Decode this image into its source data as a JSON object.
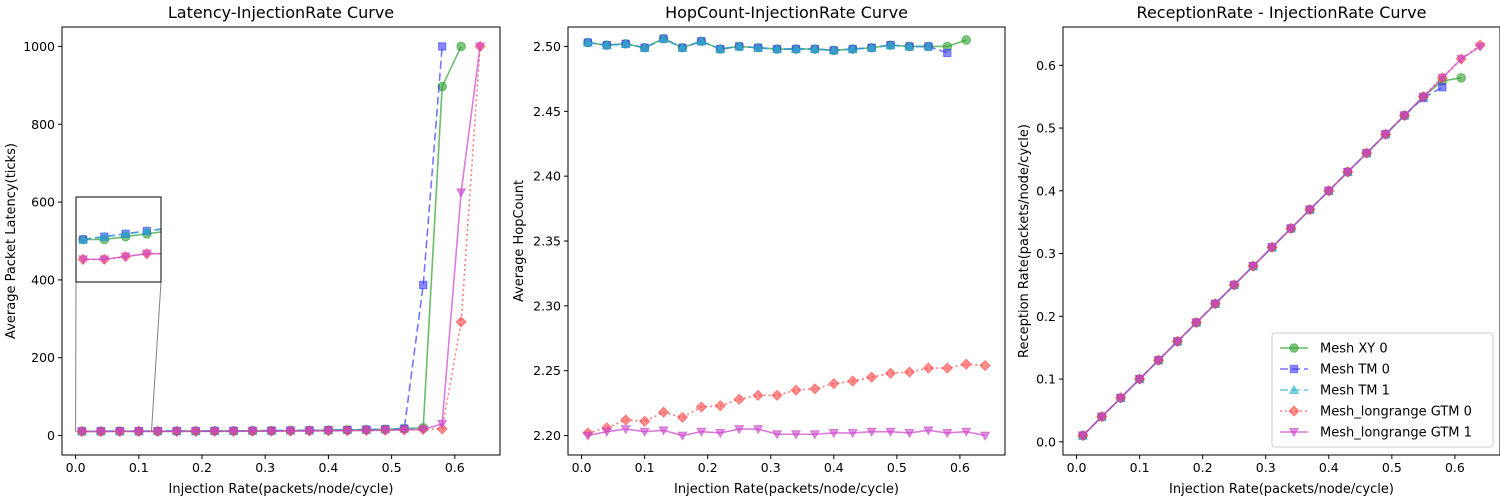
{
  "chart_data": [
    {
      "type": "line",
      "title": "Latency-InjectionRate Curve",
      "xlabel": "Injection Rate(packets/node/cycle)",
      "ylabel": "Average Packet Latency(ticks)",
      "xlim": [
        -0.0215,
        0.6715
      ],
      "ylim": [
        -50,
        1050
      ],
      "xticks": [
        "0.0",
        "0.1",
        "0.2",
        "0.3",
        "0.4",
        "0.5",
        "0.6"
      ],
      "yticks": [
        "0",
        "200",
        "400",
        "600",
        "800",
        "1000"
      ],
      "grid": false,
      "inset": {
        "xlim": [
          0.0,
          0.12
        ],
        "ylim": [
          9.5,
          12.5
        ]
      },
      "series": [
        {
          "name": "Mesh XY 0",
          "color": "#2ca02c",
          "marker": "circle",
          "dash": "solid",
          "x": [
            0.01,
            0.04,
            0.07,
            0.1,
            0.13,
            0.16,
            0.19,
            0.22,
            0.25,
            0.28,
            0.31,
            0.34,
            0.37,
            0.4,
            0.43,
            0.46,
            0.49,
            0.52,
            0.55,
            0.58,
            0.61
          ],
          "y": [
            11.0,
            11.0,
            11.1,
            11.2,
            11.3,
            11.4,
            11.6,
            11.8,
            12.0,
            12.2,
            12.5,
            12.9,
            13.3,
            13.8,
            14.4,
            15.1,
            16.0,
            17.5,
            20.0,
            897,
            1000
          ]
        },
        {
          "name": "Mesh TM 0",
          "color": "#3b3bff",
          "marker": "square",
          "dash": "dashed",
          "x": [
            0.01,
            0.04,
            0.07,
            0.1,
            0.13,
            0.16,
            0.19,
            0.22,
            0.25,
            0.28,
            0.31,
            0.34,
            0.37,
            0.4,
            0.43,
            0.46,
            0.49,
            0.52,
            0.55,
            0.58
          ],
          "y": [
            11.0,
            11.1,
            11.2,
            11.3,
            11.4,
            11.6,
            11.7,
            11.9,
            12.1,
            12.3,
            12.6,
            13.0,
            13.4,
            13.9,
            14.5,
            15.3,
            16.3,
            18.0,
            387,
            1000
          ]
        },
        {
          "name": "Mesh TM 1",
          "color": "#2bb5c6",
          "marker": "triangle-up",
          "dash": "dashed",
          "x": [
            0.01,
            0.04,
            0.07,
            0.1,
            0.13,
            0.16,
            0.19,
            0.22,
            0.25,
            0.28,
            0.31,
            0.34,
            0.37,
            0.4,
            0.43,
            0.46,
            0.49,
            0.52,
            0.55
          ],
          "y": [
            11.0,
            11.1,
            11.2,
            11.3,
            11.4,
            11.5,
            11.7,
            11.9,
            12.1,
            12.3,
            12.6,
            12.9,
            13.3,
            13.8,
            14.4,
            15.2,
            16.2,
            17.8,
            21.0
          ]
        },
        {
          "name": "Mesh_longrange GTM 0",
          "color": "#ff4444",
          "marker": "diamond",
          "dash": "dotted",
          "x": [
            0.01,
            0.04,
            0.07,
            0.1,
            0.13,
            0.16,
            0.19,
            0.22,
            0.25,
            0.28,
            0.31,
            0.34,
            0.37,
            0.4,
            0.43,
            0.46,
            0.49,
            0.52,
            0.55,
            0.58,
            0.61,
            0.64
          ],
          "y": [
            10.3,
            10.3,
            10.4,
            10.5,
            10.5,
            10.6,
            10.7,
            10.8,
            10.9,
            11.1,
            11.3,
            11.5,
            11.8,
            12.1,
            12.5,
            13.0,
            13.6,
            14.5,
            15.8,
            17.0,
            292,
            1000
          ]
        },
        {
          "name": "Mesh_longrange GTM 1",
          "color": "#cc44cc",
          "marker": "triangle-down",
          "dash": "solid",
          "x": [
            0.01,
            0.04,
            0.07,
            0.1,
            0.13,
            0.16,
            0.19,
            0.22,
            0.25,
            0.28,
            0.31,
            0.34,
            0.37,
            0.4,
            0.43,
            0.46,
            0.49,
            0.52,
            0.55,
            0.58,
            0.61,
            0.64
          ],
          "y": [
            10.3,
            10.3,
            10.4,
            10.5,
            10.5,
            10.6,
            10.7,
            10.8,
            10.9,
            11.1,
            11.3,
            11.5,
            11.8,
            12.1,
            12.5,
            13.0,
            13.6,
            14.5,
            15.8,
            30,
            625,
            1000
          ]
        }
      ]
    },
    {
      "type": "line",
      "title": "HopCount-InjectionRate Curve",
      "xlabel": "Injection Rate(packets/node/cycle)",
      "ylabel": "Average HopCount",
      "xlim": [
        -0.0215,
        0.6715
      ],
      "ylim": [
        2.185,
        2.515
      ],
      "xticks": [
        "0.0",
        "0.1",
        "0.2",
        "0.3",
        "0.4",
        "0.5",
        "0.6"
      ],
      "yticks": [
        "2.20",
        "2.25",
        "2.30",
        "2.35",
        "2.40",
        "2.45",
        "2.50"
      ],
      "grid": false,
      "series": [
        {
          "name": "Mesh XY 0",
          "color": "#2ca02c",
          "marker": "circle",
          "dash": "solid",
          "x": [
            0.01,
            0.04,
            0.07,
            0.1,
            0.13,
            0.16,
            0.19,
            0.22,
            0.25,
            0.28,
            0.31,
            0.34,
            0.37,
            0.4,
            0.43,
            0.46,
            0.49,
            0.52,
            0.55,
            0.58,
            0.61
          ],
          "y": [
            2.503,
            2.501,
            2.502,
            2.499,
            2.506,
            2.499,
            2.504,
            2.498,
            2.5,
            2.499,
            2.498,
            2.498,
            2.498,
            2.497,
            2.498,
            2.499,
            2.501,
            2.5,
            2.5,
            2.5,
            2.505
          ]
        },
        {
          "name": "Mesh TM 0",
          "color": "#3b3bff",
          "marker": "square",
          "dash": "dashed",
          "x": [
            0.01,
            0.04,
            0.07,
            0.1,
            0.13,
            0.16,
            0.19,
            0.22,
            0.25,
            0.28,
            0.31,
            0.34,
            0.37,
            0.4,
            0.43,
            0.46,
            0.49,
            0.52,
            0.55,
            0.58
          ],
          "y": [
            2.503,
            2.501,
            2.502,
            2.499,
            2.506,
            2.499,
            2.504,
            2.498,
            2.5,
            2.499,
            2.498,
            2.498,
            2.498,
            2.497,
            2.498,
            2.499,
            2.501,
            2.5,
            2.5,
            2.495
          ]
        },
        {
          "name": "Mesh TM 1",
          "color": "#2bb5c6",
          "marker": "triangle-up",
          "dash": "dashed",
          "x": [
            0.01,
            0.04,
            0.07,
            0.1,
            0.13,
            0.16,
            0.19,
            0.22,
            0.25,
            0.28,
            0.31,
            0.34,
            0.37,
            0.4,
            0.43,
            0.46,
            0.49,
            0.52,
            0.55
          ],
          "y": [
            2.503,
            2.501,
            2.502,
            2.499,
            2.506,
            2.499,
            2.504,
            2.498,
            2.5,
            2.499,
            2.498,
            2.498,
            2.498,
            2.497,
            2.498,
            2.499,
            2.501,
            2.5,
            2.5
          ]
        },
        {
          "name": "Mesh_longrange GTM 0",
          "color": "#ff4444",
          "marker": "diamond",
          "dash": "dotted",
          "x": [
            0.01,
            0.04,
            0.07,
            0.1,
            0.13,
            0.16,
            0.19,
            0.22,
            0.25,
            0.28,
            0.31,
            0.34,
            0.37,
            0.4,
            0.43,
            0.46,
            0.49,
            0.52,
            0.55,
            0.58,
            0.61,
            0.64
          ],
          "y": [
            2.202,
            2.206,
            2.212,
            2.211,
            2.218,
            2.214,
            2.222,
            2.223,
            2.228,
            2.231,
            2.231,
            2.235,
            2.236,
            2.24,
            2.242,
            2.245,
            2.248,
            2.249,
            2.252,
            2.252,
            2.255,
            2.254
          ]
        },
        {
          "name": "Mesh_longrange GTM 1",
          "color": "#cc44cc",
          "marker": "triangle-down",
          "dash": "solid",
          "x": [
            0.01,
            0.04,
            0.07,
            0.1,
            0.13,
            0.16,
            0.19,
            0.22,
            0.25,
            0.28,
            0.31,
            0.34,
            0.37,
            0.4,
            0.43,
            0.46,
            0.49,
            0.52,
            0.55,
            0.58,
            0.61,
            0.64
          ],
          "y": [
            2.2,
            2.203,
            2.205,
            2.203,
            2.204,
            2.2,
            2.203,
            2.202,
            2.205,
            2.205,
            2.201,
            2.201,
            2.201,
            2.202,
            2.202,
            2.203,
            2.203,
            2.202,
            2.204,
            2.202,
            2.203,
            2.2
          ]
        }
      ]
    },
    {
      "type": "line",
      "title": "ReceptionRate - InjectionRate Curve",
      "xlabel": "Injection Rate(packets/node/cycle)",
      "ylabel": "Reception Rate(packets/node/cycle)",
      "xlim": [
        -0.0215,
        0.6715
      ],
      "ylim": [
        -0.021,
        0.661
      ],
      "xticks": [
        "0.0",
        "0.1",
        "0.2",
        "0.3",
        "0.4",
        "0.5",
        "0.6"
      ],
      "yticks": [
        "0.0",
        "0.1",
        "0.2",
        "0.3",
        "0.4",
        "0.5",
        "0.6"
      ],
      "grid": false,
      "legend": "lower right",
      "series": [
        {
          "name": "Mesh XY 0",
          "color": "#2ca02c",
          "marker": "circle",
          "dash": "solid",
          "x": [
            0.01,
            0.04,
            0.07,
            0.1,
            0.13,
            0.16,
            0.19,
            0.22,
            0.25,
            0.28,
            0.31,
            0.34,
            0.37,
            0.4,
            0.43,
            0.46,
            0.49,
            0.52,
            0.55,
            0.58,
            0.61
          ],
          "y": [
            0.01,
            0.04,
            0.07,
            0.1,
            0.13,
            0.16,
            0.19,
            0.22,
            0.25,
            0.28,
            0.31,
            0.34,
            0.37,
            0.4,
            0.43,
            0.46,
            0.49,
            0.52,
            0.55,
            0.575,
            0.58
          ]
        },
        {
          "name": "Mesh TM 0",
          "color": "#3b3bff",
          "marker": "square",
          "dash": "dashed",
          "x": [
            0.01,
            0.04,
            0.07,
            0.1,
            0.13,
            0.16,
            0.19,
            0.22,
            0.25,
            0.28,
            0.31,
            0.34,
            0.37,
            0.4,
            0.43,
            0.46,
            0.49,
            0.52,
            0.55,
            0.58
          ],
          "y": [
            0.01,
            0.04,
            0.07,
            0.1,
            0.13,
            0.16,
            0.19,
            0.22,
            0.25,
            0.28,
            0.31,
            0.34,
            0.37,
            0.4,
            0.43,
            0.46,
            0.49,
            0.52,
            0.548,
            0.565
          ]
        },
        {
          "name": "Mesh TM 1",
          "color": "#2bb5c6",
          "marker": "triangle-up",
          "dash": "dashed",
          "x": [
            0.01,
            0.04,
            0.07,
            0.1,
            0.13,
            0.16,
            0.19,
            0.22,
            0.25,
            0.28,
            0.31,
            0.34,
            0.37,
            0.4,
            0.43,
            0.46,
            0.49,
            0.52,
            0.55
          ],
          "y": [
            0.01,
            0.04,
            0.07,
            0.1,
            0.13,
            0.16,
            0.19,
            0.22,
            0.25,
            0.28,
            0.31,
            0.34,
            0.37,
            0.4,
            0.43,
            0.46,
            0.49,
            0.52,
            0.55
          ]
        },
        {
          "name": "Mesh_longrange GTM 0",
          "color": "#ff4444",
          "marker": "diamond",
          "dash": "dotted",
          "x": [
            0.01,
            0.04,
            0.07,
            0.1,
            0.13,
            0.16,
            0.19,
            0.22,
            0.25,
            0.28,
            0.31,
            0.34,
            0.37,
            0.4,
            0.43,
            0.46,
            0.49,
            0.52,
            0.55,
            0.58,
            0.61,
            0.64
          ],
          "y": [
            0.01,
            0.04,
            0.07,
            0.1,
            0.13,
            0.16,
            0.19,
            0.22,
            0.25,
            0.28,
            0.31,
            0.34,
            0.37,
            0.4,
            0.43,
            0.46,
            0.49,
            0.52,
            0.55,
            0.58,
            0.61,
            0.632
          ]
        },
        {
          "name": "Mesh_longrange GTM 1",
          "color": "#cc44cc",
          "marker": "triangle-down",
          "dash": "solid",
          "x": [
            0.01,
            0.04,
            0.07,
            0.1,
            0.13,
            0.16,
            0.19,
            0.22,
            0.25,
            0.28,
            0.31,
            0.34,
            0.37,
            0.4,
            0.43,
            0.46,
            0.49,
            0.52,
            0.55,
            0.58,
            0.61,
            0.64
          ],
          "y": [
            0.01,
            0.04,
            0.07,
            0.1,
            0.13,
            0.16,
            0.19,
            0.22,
            0.25,
            0.28,
            0.31,
            0.34,
            0.37,
            0.4,
            0.43,
            0.46,
            0.49,
            0.52,
            0.55,
            0.58,
            0.61,
            0.63
          ]
        }
      ]
    }
  ]
}
